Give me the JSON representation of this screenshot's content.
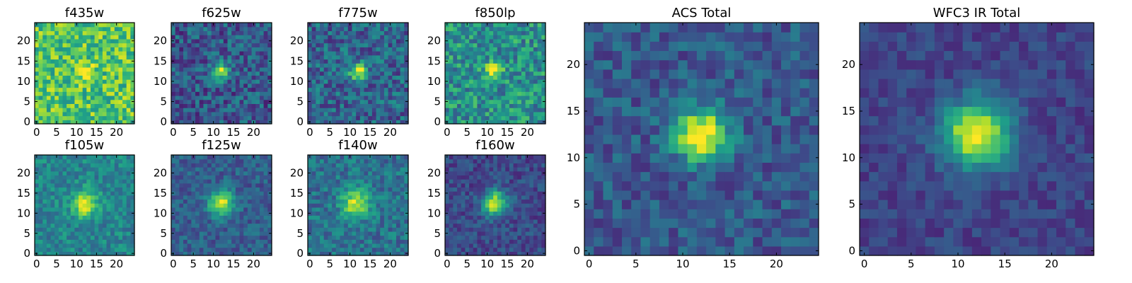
{
  "figure": {
    "colormap": "viridis",
    "colormap_stops": [
      "#440154",
      "#482878",
      "#3e4989",
      "#31688e",
      "#26828e",
      "#1f9e89",
      "#35b779",
      "#6ece58",
      "#b5de2b",
      "#fde725"
    ]
  },
  "chart_data": [
    {
      "type": "heatmap",
      "title": "f435w",
      "grid": [
        25,
        25
      ],
      "xlim": [
        0,
        24
      ],
      "ylim": [
        0,
        24
      ],
      "xticks": [
        "0",
        "5",
        "10",
        "15",
        "20"
      ],
      "yticks": [
        "0",
        "5",
        "10",
        "15",
        "20"
      ],
      "source_center": [
        12,
        12.5
      ],
      "source_peak": 0.25,
      "source_width": 1.6,
      "background": 0.72,
      "noise": 0.22
    },
    {
      "type": "heatmap",
      "title": "f625w",
      "grid": [
        25,
        25
      ],
      "xlim": [
        0,
        24
      ],
      "ylim": [
        0,
        24
      ],
      "xticks": [
        "0",
        "5",
        "10",
        "15",
        "20"
      ],
      "yticks": [
        "0",
        "5",
        "10",
        "15",
        "20"
      ],
      "source_center": [
        12,
        12.5
      ],
      "source_peak": 0.72,
      "source_width": 1.4,
      "background": 0.28,
      "noise": 0.2
    },
    {
      "type": "heatmap",
      "title": "f775w",
      "grid": [
        25,
        25
      ],
      "xlim": [
        0,
        24
      ],
      "ylim": [
        0,
        24
      ],
      "xticks": [
        "0",
        "5",
        "10",
        "15",
        "20"
      ],
      "yticks": [
        "0",
        "5",
        "10",
        "15",
        "20"
      ],
      "source_center": [
        12,
        12.5
      ],
      "source_peak": 0.68,
      "source_width": 1.4,
      "background": 0.32,
      "noise": 0.2
    },
    {
      "type": "heatmap",
      "title": "f850lp",
      "grid": [
        25,
        25
      ],
      "xlim": [
        0,
        24
      ],
      "ylim": [
        0,
        24
      ],
      "xticks": [
        "0",
        "5",
        "10",
        "15",
        "20"
      ],
      "yticks": [
        "0",
        "5",
        "10",
        "15",
        "20"
      ],
      "source_center": [
        11.5,
        12.5
      ],
      "source_peak": 0.42,
      "source_width": 1.6,
      "background": 0.5,
      "noise": 0.22
    },
    {
      "type": "heatmap",
      "title": "f105w",
      "grid": [
        25,
        25
      ],
      "xlim": [
        0,
        24
      ],
      "ylim": [
        0,
        24
      ],
      "xticks": [
        "0",
        "5",
        "10",
        "15",
        "20"
      ],
      "yticks": [
        "0",
        "5",
        "10",
        "15",
        "20"
      ],
      "source_center": [
        12,
        12.5
      ],
      "source_peak": 0.55,
      "source_width": 2.2,
      "background": 0.45,
      "noise": 0.14
    },
    {
      "type": "heatmap",
      "title": "f125w",
      "grid": [
        25,
        25
      ],
      "xlim": [
        0,
        24
      ],
      "ylim": [
        0,
        24
      ],
      "xticks": [
        "0",
        "5",
        "10",
        "15",
        "20"
      ],
      "yticks": [
        "0",
        "5",
        "10",
        "15",
        "20"
      ],
      "source_center": [
        12,
        12.5
      ],
      "source_peak": 0.65,
      "source_width": 2.2,
      "background": 0.3,
      "noise": 0.13
    },
    {
      "type": "heatmap",
      "title": "f140w",
      "grid": [
        25,
        25
      ],
      "xlim": [
        0,
        24
      ],
      "ylim": [
        0,
        24
      ],
      "xticks": [
        "0",
        "5",
        "10",
        "15",
        "20"
      ],
      "yticks": [
        "0",
        "5",
        "10",
        "15",
        "20"
      ],
      "source_center": [
        11.5,
        12.5
      ],
      "source_peak": 0.55,
      "source_width": 2.4,
      "background": 0.38,
      "noise": 0.15
    },
    {
      "type": "heatmap",
      "title": "f160w",
      "grid": [
        25,
        25
      ],
      "xlim": [
        0,
        24
      ],
      "ylim": [
        0,
        24
      ],
      "xticks": [
        "0",
        "5",
        "10",
        "15",
        "20"
      ],
      "yticks": [
        "0",
        "5",
        "10",
        "15",
        "20"
      ],
      "source_center": [
        12,
        12.5
      ],
      "source_peak": 0.72,
      "source_width": 2.2,
      "background": 0.22,
      "noise": 0.12
    },
    {
      "type": "heatmap",
      "title": "ACS Total",
      "grid": [
        25,
        25
      ],
      "xlim": [
        0,
        24
      ],
      "ylim": [
        0,
        24
      ],
      "xticks": [
        "0",
        "5",
        "10",
        "15",
        "20"
      ],
      "yticks": [
        "0",
        "5",
        "10",
        "15",
        "20"
      ],
      "source_center": [
        12,
        12.5
      ],
      "source_peak": 0.8,
      "source_width": 1.9,
      "background": 0.28,
      "noise": 0.14
    },
    {
      "type": "heatmap",
      "title": "WFC3 IR Total",
      "grid": [
        25,
        25
      ],
      "xlim": [
        0,
        24
      ],
      "ylim": [
        0,
        24
      ],
      "xticks": [
        "0",
        "5",
        "10",
        "15",
        "20"
      ],
      "yticks": [
        "0",
        "5",
        "10",
        "15",
        "20"
      ],
      "source_center": [
        12,
        12.5
      ],
      "source_peak": 0.82,
      "source_width": 2.5,
      "background": 0.2,
      "noise": 0.09
    }
  ]
}
